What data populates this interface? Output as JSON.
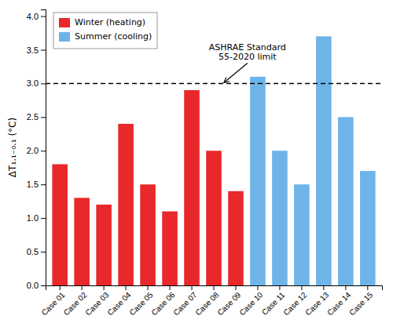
{
  "chart_data": {
    "type": "bar",
    "categories": [
      "Case 01",
      "Case 02",
      "Case 03",
      "Case 04",
      "Case 05",
      "Case 06",
      "Case 07",
      "Case 08",
      "Case 09",
      "Case 10",
      "Case 11",
      "Case 12",
      "Case 13",
      "Case 14",
      "Case 15"
    ],
    "series": [
      {
        "name": "Winter (heating)",
        "color": "#E8282A",
        "values": [
          1.8,
          1.3,
          1.2,
          2.4,
          1.5,
          1.1,
          2.9,
          2.0,
          1.4,
          null,
          null,
          null,
          null,
          null,
          null
        ]
      },
      {
        "name": "Summer (cooling)",
        "color": "#6EB4E8",
        "values": [
          null,
          null,
          null,
          null,
          null,
          null,
          null,
          null,
          null,
          3.1,
          2.0,
          1.5,
          3.7,
          2.5,
          1.7
        ]
      }
    ],
    "y_label": "ΔT₁.₁₋₀.₁ (°C)",
    "ylim": [
      0,
      4.1
    ],
    "yticks": [
      {
        "value": 0,
        "label": "0.0"
      },
      0.5,
      {
        "value": 1,
        "label": "1.0"
      },
      1.5,
      {
        "value": 2,
        "label": "2.0"
      },
      2.5,
      {
        "value": 3,
        "label": "3.0"
      },
      3.5,
      {
        "value": 4,
        "label": "4.0"
      }
    ],
    "annotations": [
      {
        "text": "ASHRAE Standard\n55-2020 limit",
        "value": 3.0
      }
    ],
    "legend": "upper left",
    "grid": false
  }
}
